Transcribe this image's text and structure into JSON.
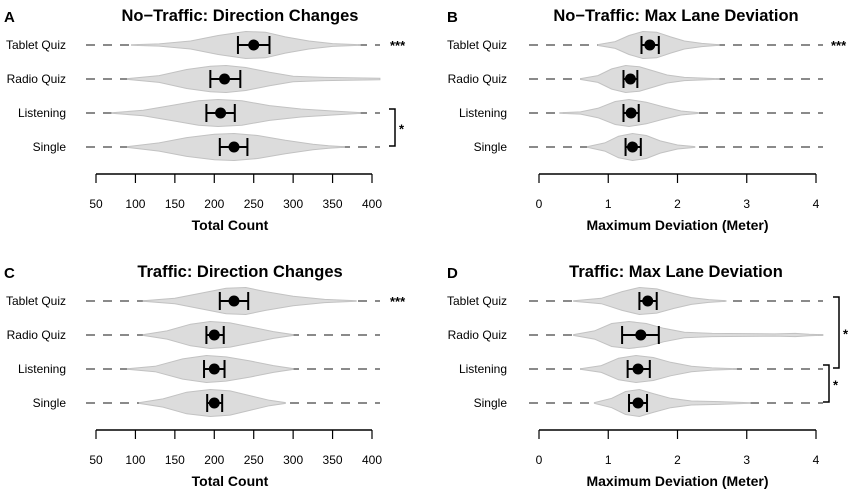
{
  "chart_data": [
    {
      "panel_label": "A",
      "type": "violin",
      "title": "No−Traffic: Direction Changes",
      "xlabel": "Total Count",
      "xlim": [
        50,
        400
      ],
      "xticks": [
        50,
        100,
        150,
        200,
        250,
        300,
        350,
        400
      ],
      "categories": [
        "Tablet Quiz",
        "Radio Quiz",
        "Listening",
        "Single"
      ],
      "series": [
        {
          "name": "Tablet Quiz",
          "mean": 250,
          "ci": [
            230,
            270
          ],
          "range": [
            95,
            385
          ],
          "density": [
            [
              95,
              0.02
            ],
            [
              130,
              0.08
            ],
            [
              170,
              0.3
            ],
            [
              205,
              0.7
            ],
            [
              240,
              1.0
            ],
            [
              265,
              0.95
            ],
            [
              290,
              0.6
            ],
            [
              320,
              0.3
            ],
            [
              350,
              0.1
            ],
            [
              385,
              0.02
            ]
          ]
        },
        {
          "name": "Radio Quiz",
          "mean": 213,
          "ci": [
            195,
            233
          ],
          "range": [
            90,
            410
          ],
          "density": [
            [
              90,
              0.03
            ],
            [
              130,
              0.25
            ],
            [
              165,
              0.7
            ],
            [
              195,
              0.95
            ],
            [
              215,
              1.0
            ],
            [
              240,
              0.85
            ],
            [
              270,
              0.5
            ],
            [
              300,
              0.2
            ],
            [
              340,
              0.12
            ],
            [
              410,
              0.05
            ]
          ]
        },
        {
          "name": "Listening",
          "mean": 208,
          "ci": [
            190,
            226
          ],
          "range": [
            70,
            385
          ],
          "density": [
            [
              70,
              0.02
            ],
            [
              110,
              0.2
            ],
            [
              150,
              0.6
            ],
            [
              180,
              0.9
            ],
            [
              205,
              1.0
            ],
            [
              235,
              0.9
            ],
            [
              270,
              0.55
            ],
            [
              310,
              0.3
            ],
            [
              350,
              0.15
            ],
            [
              385,
              0.03
            ]
          ]
        },
        {
          "name": "Single",
          "mean": 225,
          "ci": [
            207,
            242
          ],
          "range": [
            90,
            365
          ],
          "density": [
            [
              90,
              0.03
            ],
            [
              130,
              0.3
            ],
            [
              165,
              0.7
            ],
            [
              200,
              0.95
            ],
            [
              225,
              1.0
            ],
            [
              255,
              0.85
            ],
            [
              290,
              0.5
            ],
            [
              325,
              0.2
            ],
            [
              345,
              0.1
            ],
            [
              365,
              0.02
            ]
          ]
        }
      ],
      "annotations": [
        {
          "text": "***",
          "category": "Tablet Quiz"
        },
        {
          "text": "*",
          "between": [
            "Listening",
            "Single"
          ]
        }
      ]
    },
    {
      "panel_label": "B",
      "type": "violin",
      "title": "No−Traffic: Max Lane Deviation",
      "xlabel": "Maximum Deviation (Meter)",
      "xlim": [
        0,
        4
      ],
      "xticks": [
        0,
        1,
        2,
        3,
        4
      ],
      "categories": [
        "Tablet Quiz",
        "Radio Quiz",
        "Listening",
        "Single"
      ],
      "series": [
        {
          "name": "Tablet Quiz",
          "mean": 1.6,
          "ci": [
            1.48,
            1.73
          ],
          "range": [
            0.85,
            2.6
          ],
          "density": [
            [
              0.85,
              0.03
            ],
            [
              1.1,
              0.25
            ],
            [
              1.3,
              0.7
            ],
            [
              1.5,
              1.0
            ],
            [
              1.7,
              0.95
            ],
            [
              1.9,
              0.6
            ],
            [
              2.1,
              0.3
            ],
            [
              2.35,
              0.12
            ],
            [
              2.6,
              0.02
            ]
          ]
        },
        {
          "name": "Radio Quiz",
          "mean": 1.32,
          "ci": [
            1.22,
            1.42
          ],
          "range": [
            0.6,
            2.6
          ],
          "density": [
            [
              0.6,
              0.03
            ],
            [
              0.85,
              0.25
            ],
            [
              1.05,
              0.75
            ],
            [
              1.25,
              1.0
            ],
            [
              1.45,
              0.9
            ],
            [
              1.65,
              0.6
            ],
            [
              1.85,
              0.3
            ],
            [
              2.1,
              0.12
            ],
            [
              2.6,
              0.02
            ]
          ]
        },
        {
          "name": "Listening",
          "mean": 1.33,
          "ci": [
            1.22,
            1.44
          ],
          "range": [
            0.3,
            2.3
          ],
          "density": [
            [
              0.3,
              0.02
            ],
            [
              0.6,
              0.08
            ],
            [
              0.85,
              0.35
            ],
            [
              1.1,
              0.85
            ],
            [
              1.3,
              1.0
            ],
            [
              1.55,
              0.8
            ],
            [
              1.8,
              0.45
            ],
            [
              2.05,
              0.15
            ],
            [
              2.3,
              0.03
            ]
          ]
        },
        {
          "name": "Single",
          "mean": 1.35,
          "ci": [
            1.25,
            1.47
          ],
          "range": [
            0.7,
            2.25
          ],
          "density": [
            [
              0.7,
              0.03
            ],
            [
              0.95,
              0.3
            ],
            [
              1.15,
              0.8
            ],
            [
              1.35,
              1.0
            ],
            [
              1.55,
              0.85
            ],
            [
              1.75,
              0.45
            ],
            [
              2.0,
              0.15
            ],
            [
              2.25,
              0.03
            ]
          ]
        }
      ],
      "annotations": [
        {
          "text": "***",
          "category": "Tablet Quiz"
        }
      ]
    },
    {
      "panel_label": "C",
      "type": "violin",
      "title": "Traffic: Direction Changes",
      "xlabel": "Total Count",
      "xlim": [
        50,
        400
      ],
      "xticks": [
        50,
        100,
        150,
        200,
        250,
        300,
        350,
        400
      ],
      "categories": [
        "Tablet Quiz",
        "Radio Quiz",
        "Listening",
        "Single"
      ],
      "series": [
        {
          "name": "Tablet Quiz",
          "mean": 225,
          "ci": [
            207,
            243
          ],
          "range": [
            110,
            380
          ],
          "density": [
            [
              110,
              0.02
            ],
            [
              150,
              0.2
            ],
            [
              185,
              0.6
            ],
            [
              215,
              0.95
            ],
            [
              240,
              1.0
            ],
            [
              265,
              0.7
            ],
            [
              300,
              0.35
            ],
            [
              340,
              0.12
            ],
            [
              380,
              0.02
            ]
          ]
        },
        {
          "name": "Radio Quiz",
          "mean": 200,
          "ci": [
            190,
            212
          ],
          "range": [
            110,
            300
          ],
          "density": [
            [
              110,
              0.03
            ],
            [
              140,
              0.3
            ],
            [
              170,
              0.8
            ],
            [
              195,
              1.0
            ],
            [
              220,
              0.9
            ],
            [
              250,
              0.55
            ],
            [
              275,
              0.25
            ],
            [
              300,
              0.03
            ]
          ]
        },
        {
          "name": "Listening",
          "mean": 200,
          "ci": [
            187,
            213
          ],
          "range": [
            90,
            300
          ],
          "density": [
            [
              90,
              0.02
            ],
            [
              125,
              0.2
            ],
            [
              160,
              0.75
            ],
            [
              190,
              1.0
            ],
            [
              215,
              0.9
            ],
            [
              245,
              0.6
            ],
            [
              275,
              0.25
            ],
            [
              300,
              0.03
            ]
          ]
        },
        {
          "name": "Single",
          "mean": 200,
          "ci": [
            191,
            210
          ],
          "range": [
            105,
            290
          ],
          "density": [
            [
              105,
              0.03
            ],
            [
              135,
              0.3
            ],
            [
              165,
              0.8
            ],
            [
              195,
              1.0
            ],
            [
              220,
              0.9
            ],
            [
              245,
              0.55
            ],
            [
              270,
              0.2
            ],
            [
              290,
              0.03
            ]
          ]
        }
      ],
      "annotations": [
        {
          "text": "***",
          "category": "Tablet Quiz"
        }
      ]
    },
    {
      "panel_label": "D",
      "type": "violin",
      "title": "Traffic: Max Lane Deviation",
      "xlabel": "Maximum Deviation (Meter)",
      "xlim": [
        0,
        4
      ],
      "xticks": [
        0,
        1,
        2,
        3,
        4
      ],
      "categories": [
        "Tablet Quiz",
        "Radio Quiz",
        "Listening",
        "Single"
      ],
      "series": [
        {
          "name": "Tablet Quiz",
          "mean": 1.57,
          "ci": [
            1.45,
            1.7
          ],
          "range": [
            0.5,
            2.7
          ],
          "density": [
            [
              0.5,
              0.02
            ],
            [
              0.9,
              0.2
            ],
            [
              1.2,
              0.7
            ],
            [
              1.45,
              1.0
            ],
            [
              1.7,
              0.9
            ],
            [
              1.95,
              0.55
            ],
            [
              2.2,
              0.25
            ],
            [
              2.45,
              0.1
            ],
            [
              2.7,
              0.02
            ]
          ]
        },
        {
          "name": "Radio Quiz",
          "mean": 1.47,
          "ci": [
            1.2,
            1.73
          ],
          "range": [
            0.5,
            4.1
          ],
          "density": [
            [
              0.5,
              0.03
            ],
            [
              0.8,
              0.3
            ],
            [
              1.05,
              0.85
            ],
            [
              1.3,
              1.0
            ],
            [
              1.55,
              0.85
            ],
            [
              1.8,
              0.5
            ],
            [
              2.1,
              0.2
            ],
            [
              2.5,
              0.12
            ],
            [
              3.0,
              0.1
            ],
            [
              3.4,
              0.08
            ],
            [
              3.7,
              0.12
            ],
            [
              3.9,
              0.05
            ],
            [
              4.1,
              0.02
            ]
          ]
        },
        {
          "name": "Listening",
          "mean": 1.43,
          "ci": [
            1.28,
            1.6
          ],
          "range": [
            0.6,
            2.85
          ],
          "density": [
            [
              0.6,
              0.02
            ],
            [
              0.9,
              0.25
            ],
            [
              1.15,
              0.8
            ],
            [
              1.4,
              1.0
            ],
            [
              1.65,
              0.85
            ],
            [
              1.9,
              0.5
            ],
            [
              2.2,
              0.2
            ],
            [
              2.5,
              0.08
            ],
            [
              2.85,
              0.02
            ]
          ]
        },
        {
          "name": "Single",
          "mean": 1.43,
          "ci": [
            1.3,
            1.56
          ],
          "range": [
            0.8,
            3.05
          ],
          "density": [
            [
              0.8,
              0.03
            ],
            [
              1.05,
              0.35
            ],
            [
              1.25,
              0.85
            ],
            [
              1.45,
              1.0
            ],
            [
              1.65,
              0.7
            ],
            [
              1.9,
              0.35
            ],
            [
              2.2,
              0.15
            ],
            [
              2.6,
              0.1
            ],
            [
              3.05,
              0.02
            ]
          ]
        }
      ],
      "annotations": [
        {
          "text": "*",
          "between": [
            "Tablet Quiz",
            "Listening"
          ]
        },
        {
          "text": "*",
          "between": [
            "Listening",
            "Single"
          ]
        }
      ]
    }
  ]
}
